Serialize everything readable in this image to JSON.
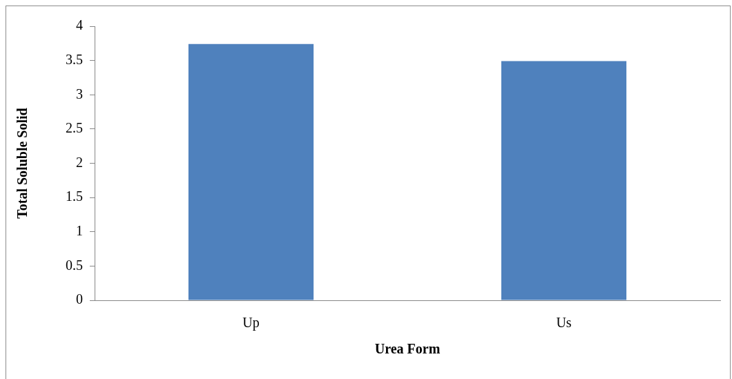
{
  "chart_data": {
    "type": "bar",
    "xlabel": "Urea Form",
    "ylabel": "Total Soluble Solid",
    "categories": [
      "Up",
      "Us"
    ],
    "values": [
      3.74,
      3.49
    ],
    "color": "#4f81bd",
    "ylim": [
      0,
      4
    ],
    "yticks": [
      0,
      0.5,
      1,
      1.5,
      2,
      2.5,
      3,
      3.5,
      4
    ],
    "grid": false,
    "legend": false
  }
}
